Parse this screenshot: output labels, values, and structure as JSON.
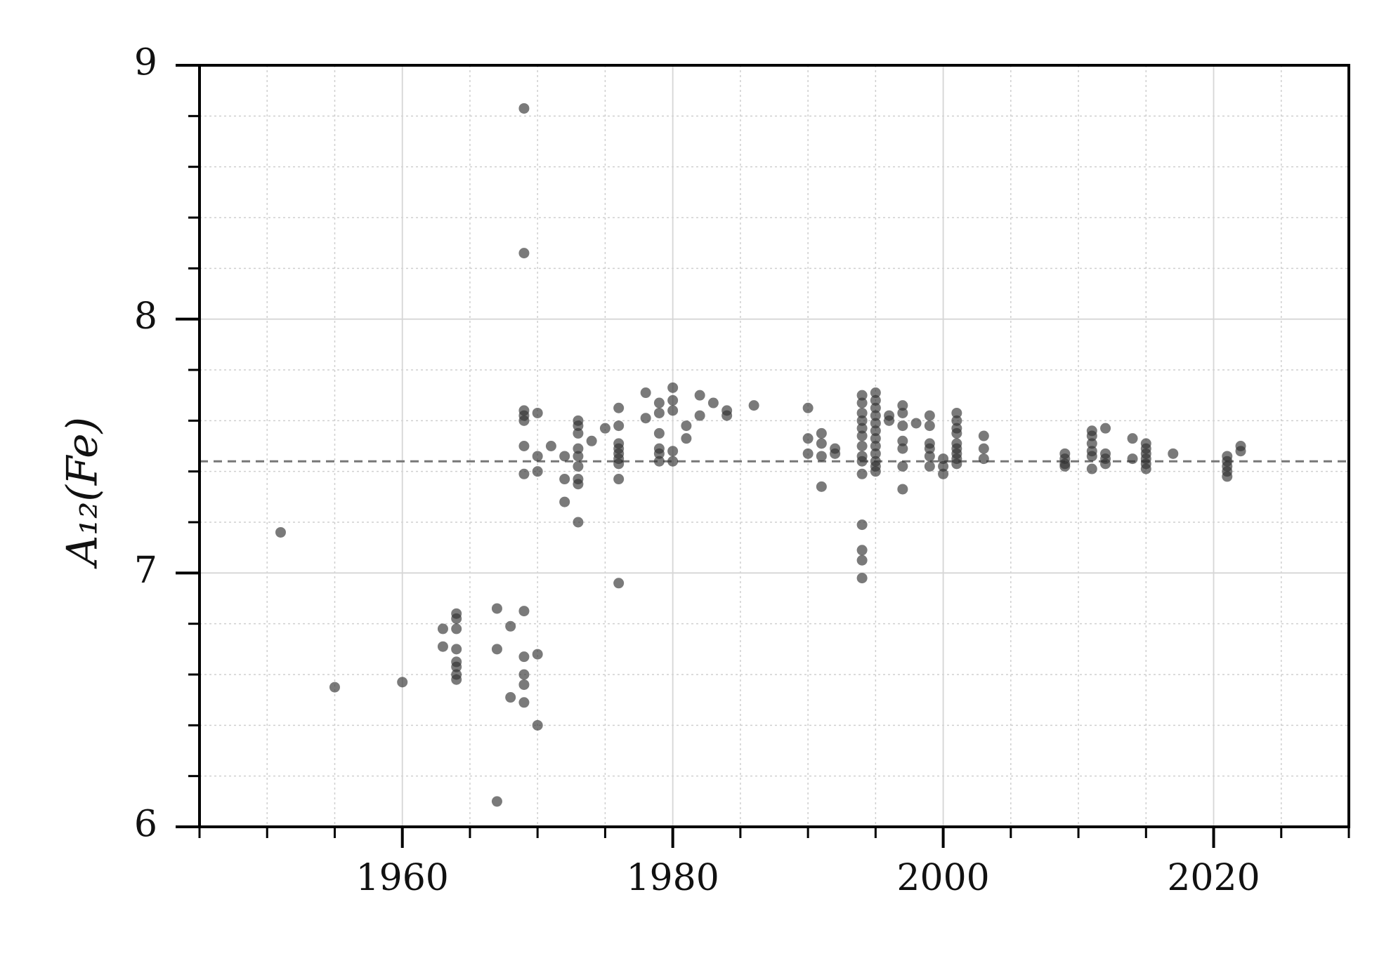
{
  "chart_data": {
    "type": "scatter",
    "ylabel": "A₁₂(Fe)",
    "xlabel": "",
    "title": "",
    "xlim": [
      1945,
      2030
    ],
    "ylim": [
      6,
      9
    ],
    "x_ticks": [
      1960,
      1980,
      2000,
      2020
    ],
    "x_tick_labels": [
      "1960",
      "1980",
      "2000",
      "2020"
    ],
    "y_ticks": [
      6,
      7,
      8,
      9
    ],
    "y_tick_labels": [
      "6",
      "7",
      "8",
      "9"
    ],
    "grid": "major and minor",
    "reference_line": {
      "y": 7.44,
      "style": "dashed",
      "color": "#777777"
    },
    "marker_color": "#333333",
    "points": [
      [
        1951,
        7.16
      ],
      [
        1955,
        6.55
      ],
      [
        1960,
        6.57
      ],
      [
        1963,
        6.78
      ],
      [
        1963,
        6.71
      ],
      [
        1964,
        6.84
      ],
      [
        1964,
        6.82
      ],
      [
        1964,
        6.78
      ],
      [
        1964,
        6.7
      ],
      [
        1964,
        6.65
      ],
      [
        1964,
        6.63
      ],
      [
        1964,
        6.6
      ],
      [
        1964,
        6.58
      ],
      [
        1967,
        6.86
      ],
      [
        1967,
        6.7
      ],
      [
        1967,
        6.1
      ],
      [
        1968,
        6.79
      ],
      [
        1968,
        6.51
      ],
      [
        1969,
        8.83
      ],
      [
        1969,
        8.26
      ],
      [
        1969,
        7.64
      ],
      [
        1969,
        7.62
      ],
      [
        1969,
        7.6
      ],
      [
        1969,
        7.5
      ],
      [
        1969,
        7.39
      ],
      [
        1969,
        6.85
      ],
      [
        1969,
        6.67
      ],
      [
        1969,
        6.6
      ],
      [
        1969,
        6.56
      ],
      [
        1969,
        6.49
      ],
      [
        1970,
        7.63
      ],
      [
        1970,
        7.46
      ],
      [
        1970,
        7.4
      ],
      [
        1970,
        6.68
      ],
      [
        1970,
        6.4
      ],
      [
        1971,
        7.5
      ],
      [
        1972,
        7.46
      ],
      [
        1972,
        7.37
      ],
      [
        1972,
        7.28
      ],
      [
        1973,
        7.6
      ],
      [
        1973,
        7.58
      ],
      [
        1973,
        7.55
      ],
      [
        1973,
        7.49
      ],
      [
        1973,
        7.46
      ],
      [
        1973,
        7.42
      ],
      [
        1973,
        7.37
      ],
      [
        1973,
        7.35
      ],
      [
        1973,
        7.2
      ],
      [
        1974,
        7.52
      ],
      [
        1975,
        7.57
      ],
      [
        1976,
        7.65
      ],
      [
        1976,
        7.58
      ],
      [
        1976,
        7.51
      ],
      [
        1976,
        7.49
      ],
      [
        1976,
        7.47
      ],
      [
        1976,
        7.45
      ],
      [
        1976,
        7.43
      ],
      [
        1976,
        7.37
      ],
      [
        1976,
        6.96
      ],
      [
        1978,
        7.71
      ],
      [
        1978,
        7.61
      ],
      [
        1979,
        7.67
      ],
      [
        1979,
        7.63
      ],
      [
        1979,
        7.55
      ],
      [
        1979,
        7.49
      ],
      [
        1979,
        7.47
      ],
      [
        1979,
        7.44
      ],
      [
        1980,
        7.73
      ],
      [
        1980,
        7.68
      ],
      [
        1980,
        7.64
      ],
      [
        1980,
        7.48
      ],
      [
        1980,
        7.44
      ],
      [
        1981,
        7.58
      ],
      [
        1981,
        7.53
      ],
      [
        1982,
        7.7
      ],
      [
        1982,
        7.62
      ],
      [
        1983,
        7.67
      ],
      [
        1984,
        7.64
      ],
      [
        1984,
        7.62
      ],
      [
        1986,
        7.66
      ],
      [
        1990,
        7.65
      ],
      [
        1990,
        7.53
      ],
      [
        1990,
        7.47
      ],
      [
        1991,
        7.55
      ],
      [
        1991,
        7.51
      ],
      [
        1991,
        7.46
      ],
      [
        1991,
        7.34
      ],
      [
        1992,
        7.49
      ],
      [
        1992,
        7.47
      ],
      [
        1994,
        7.7
      ],
      [
        1994,
        7.67
      ],
      [
        1994,
        7.63
      ],
      [
        1994,
        7.6
      ],
      [
        1994,
        7.57
      ],
      [
        1994,
        7.54
      ],
      [
        1994,
        7.5
      ],
      [
        1994,
        7.46
      ],
      [
        1994,
        7.44
      ],
      [
        1994,
        7.39
      ],
      [
        1994,
        7.19
      ],
      [
        1994,
        7.09
      ],
      [
        1994,
        7.05
      ],
      [
        1994,
        6.98
      ],
      [
        1995,
        7.71
      ],
      [
        1995,
        7.68
      ],
      [
        1995,
        7.65
      ],
      [
        1995,
        7.62
      ],
      [
        1995,
        7.59
      ],
      [
        1995,
        7.56
      ],
      [
        1995,
        7.53
      ],
      [
        1995,
        7.5
      ],
      [
        1995,
        7.47
      ],
      [
        1995,
        7.44
      ],
      [
        1995,
        7.42
      ],
      [
        1995,
        7.4
      ],
      [
        1996,
        7.62
      ],
      [
        1996,
        7.6
      ],
      [
        1997,
        7.66
      ],
      [
        1997,
        7.63
      ],
      [
        1997,
        7.58
      ],
      [
        1997,
        7.52
      ],
      [
        1997,
        7.49
      ],
      [
        1997,
        7.42
      ],
      [
        1997,
        7.33
      ],
      [
        1998,
        7.59
      ],
      [
        1999,
        7.62
      ],
      [
        1999,
        7.58
      ],
      [
        1999,
        7.51
      ],
      [
        1999,
        7.49
      ],
      [
        1999,
        7.46
      ],
      [
        1999,
        7.42
      ],
      [
        2000,
        7.45
      ],
      [
        2000,
        7.42
      ],
      [
        2000,
        7.39
      ],
      [
        2001,
        7.63
      ],
      [
        2001,
        7.6
      ],
      [
        2001,
        7.57
      ],
      [
        2001,
        7.55
      ],
      [
        2001,
        7.51
      ],
      [
        2001,
        7.49
      ],
      [
        2001,
        7.47
      ],
      [
        2001,
        7.45
      ],
      [
        2001,
        7.43
      ],
      [
        2003,
        7.54
      ],
      [
        2003,
        7.49
      ],
      [
        2003,
        7.45
      ],
      [
        2009,
        7.47
      ],
      [
        2009,
        7.45
      ],
      [
        2009,
        7.43
      ],
      [
        2009,
        7.42
      ],
      [
        2011,
        7.56
      ],
      [
        2011,
        7.54
      ],
      [
        2011,
        7.51
      ],
      [
        2011,
        7.48
      ],
      [
        2011,
        7.46
      ],
      [
        2011,
        7.41
      ],
      [
        2012,
        7.57
      ],
      [
        2012,
        7.47
      ],
      [
        2012,
        7.45
      ],
      [
        2012,
        7.43
      ],
      [
        2014,
        7.53
      ],
      [
        2014,
        7.45
      ],
      [
        2015,
        7.51
      ],
      [
        2015,
        7.49
      ],
      [
        2015,
        7.47
      ],
      [
        2015,
        7.45
      ],
      [
        2015,
        7.43
      ],
      [
        2015,
        7.41
      ],
      [
        2017,
        7.47
      ],
      [
        2021,
        7.46
      ],
      [
        2021,
        7.44
      ],
      [
        2021,
        7.42
      ],
      [
        2021,
        7.4
      ],
      [
        2021,
        7.38
      ],
      [
        2022,
        7.5
      ],
      [
        2022,
        7.48
      ]
    ]
  }
}
